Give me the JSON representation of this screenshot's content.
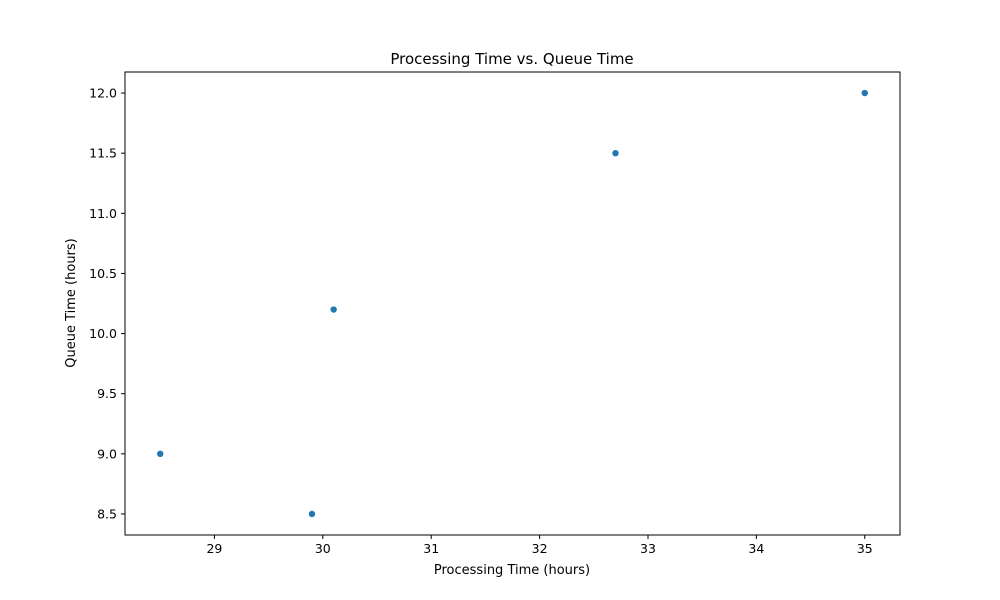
{
  "chart_data": {
    "type": "scatter",
    "title": "Processing Time vs. Queue Time",
    "xlabel": "Processing Time (hours)",
    "ylabel": "Queue Time (hours)",
    "xlim": [
      28.175,
      35.325
    ],
    "ylim": [
      8.325,
      12.175
    ],
    "x_ticks": [
      29,
      30,
      31,
      32,
      33,
      34,
      35
    ],
    "y_ticks": [
      8.5,
      9.0,
      9.5,
      10.0,
      10.5,
      11.0,
      11.5,
      12.0
    ],
    "grid": false,
    "legend": "none",
    "marker_color": "#1f77b4",
    "points": [
      {
        "x": 28.5,
        "y": 9.0
      },
      {
        "x": 29.9,
        "y": 8.5
      },
      {
        "x": 30.1,
        "y": 10.2
      },
      {
        "x": 32.7,
        "y": 11.5
      },
      {
        "x": 35.0,
        "y": 12.0
      }
    ]
  }
}
